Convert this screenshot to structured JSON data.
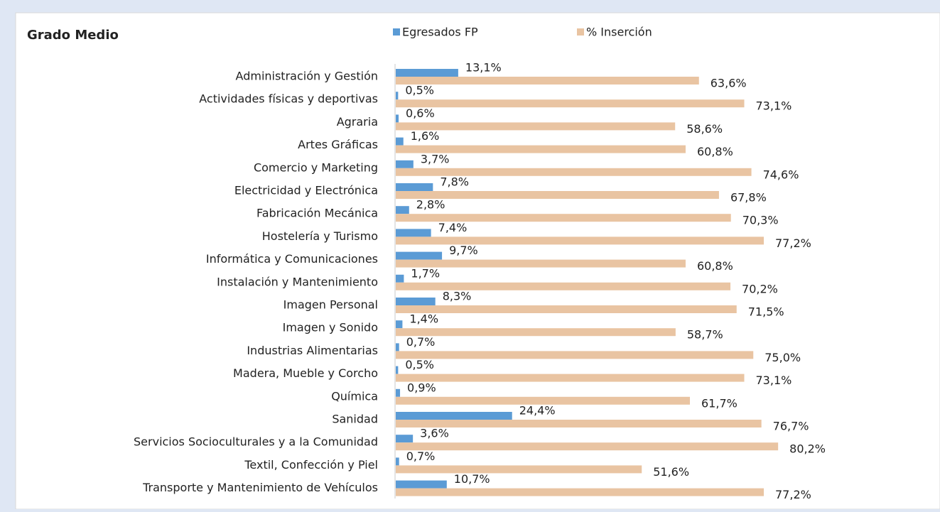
{
  "chart_data": {
    "type": "bar",
    "orientation": "horizontal",
    "title": "Grado Medio",
    "categories": [
      "Administración y Gestión",
      "Actividades físicas y deportivas",
      "Agraria",
      "Artes Gráficas",
      "Comercio y Marketing",
      "Electricidad y Electrónica",
      "Fabricación Mecánica",
      "Hostelería y Turismo",
      "Informática y Comunicaciones",
      "Instalación y Mantenimiento",
      "Imagen Personal",
      "Imagen y Sonido",
      "Industrias Alimentarias",
      "Madera, Mueble y Corcho",
      "Química",
      "Sanidad",
      "Servicios Socioculturales y a la Comunidad",
      "Textil, Confección y Piel",
      "Transporte y Mantenimiento de Vehículos"
    ],
    "series": [
      {
        "name": "Egresados FP",
        "color": "#5b9bd5",
        "values": [
          13.1,
          0.5,
          0.6,
          1.6,
          3.7,
          7.8,
          2.8,
          7.4,
          9.7,
          1.7,
          8.3,
          1.4,
          0.7,
          0.5,
          0.9,
          24.4,
          3.6,
          0.7,
          10.7
        ],
        "value_labels": [
          "13,1%",
          "0,5%",
          "0,6%",
          "1,6%",
          "3,7%",
          "7,8%",
          "2,8%",
          "7,4%",
          "9,7%",
          "1,7%",
          "8,3%",
          "1,4%",
          "0,7%",
          "0,5%",
          "0,9%",
          "24,4%",
          "3,6%",
          "0,7%",
          "10,7%"
        ]
      },
      {
        "name": "% Inserción",
        "color": "#e9c4a2",
        "values": [
          63.6,
          73.1,
          58.6,
          60.8,
          74.6,
          67.8,
          70.3,
          77.2,
          60.8,
          70.2,
          71.5,
          58.7,
          75.0,
          73.1,
          61.7,
          76.7,
          80.2,
          51.6,
          77.2
        ],
        "value_labels": [
          "63,6%",
          "73,1%",
          "58,6%",
          "60,8%",
          "74,6%",
          "67,8%",
          "70,3%",
          "77,2%",
          "60,8%",
          "70,2%",
          "71,5%",
          "58,7%",
          "75,0%",
          "73,1%",
          "61,7%",
          "76,7%",
          "80,2%",
          "51,6%",
          "77,2%"
        ]
      }
    ],
    "legend": "top"
  }
}
